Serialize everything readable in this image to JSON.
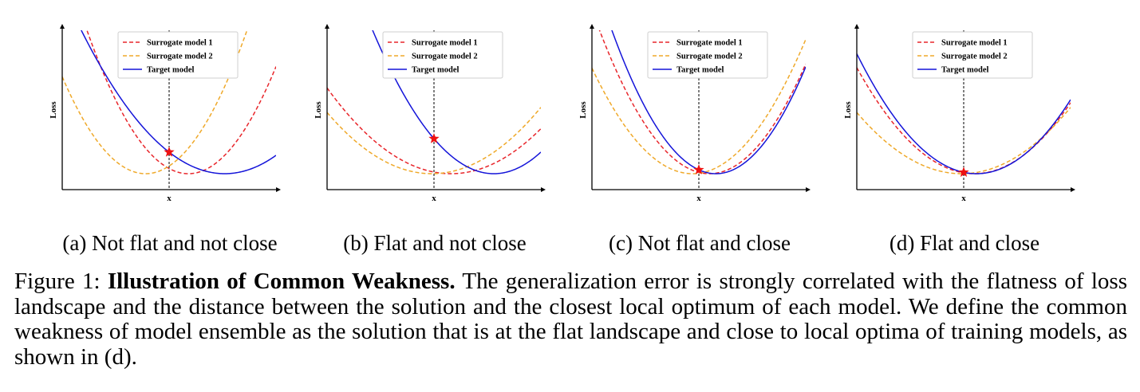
{
  "legend": {
    "surrogate1": "Surrogate model 1",
    "surrogate2": "Surrogate model 2",
    "target": "Target model"
  },
  "axes": {
    "xlabel": "x",
    "ylabel": "Loss"
  },
  "colors": {
    "surrogate1": "#e8262b",
    "surrogate2": "#efa92a",
    "target": "#1414d9",
    "star": "#ee1111"
  },
  "subcaptions": [
    "(a) Not flat and not close",
    "(b) Flat and not close",
    "(c) Not flat and close",
    "(d) Flat and close"
  ],
  "caption": {
    "prefix": "Figure 1: ",
    "title": "Illustration of Common Weakness.",
    "body": " The generalization error is strongly correlated with the flatness of loss landscape and the distance between the solution and the closest local optimum of each model. We define the common weakness of model ensemble as the solution that is at the flat landscape and close to local optima of training models, as shown in (d)."
  },
  "chart_data": [
    {
      "type": "line",
      "subcaption": "(a) Not flat and not close",
      "xlabel": "x",
      "ylabel": "Loss",
      "xlim": [
        0,
        10
      ],
      "ylim": [
        0,
        10
      ],
      "legend": "top-center",
      "solution_x": 5,
      "series": [
        {
          "name": "Surrogate model 1",
          "style": "dashed",
          "vertex": [
            5.9,
            1.0
          ],
          "curvature": 0.4
        },
        {
          "name": "Surrogate model 2",
          "style": "dashed",
          "vertex": [
            3.9,
            1.0
          ],
          "curvature": 0.4
        },
        {
          "name": "Target model",
          "style": "solid",
          "vertex": [
            7.6,
            1.0
          ],
          "curvature": 0.2
        }
      ]
    },
    {
      "type": "line",
      "subcaption": "(b) Flat and not close",
      "xlabel": "x",
      "ylabel": "Loss",
      "xlim": [
        0,
        10
      ],
      "ylim": [
        0,
        10
      ],
      "legend": "top-center",
      "solution_x": 5,
      "series": [
        {
          "name": "Surrogate model 1",
          "style": "dashed",
          "vertex": [
            5.8,
            1.0
          ],
          "curvature": 0.16
        },
        {
          "name": "Surrogate model 2",
          "style": "dashed",
          "vertex": [
            4.9,
            1.0
          ],
          "curvature": 0.16
        },
        {
          "name": "Target model",
          "style": "solid",
          "vertex": [
            7.8,
            1.0
          ],
          "curvature": 0.28
        }
      ]
    },
    {
      "type": "line",
      "subcaption": "(c) Not flat and close",
      "xlabel": "x",
      "ylabel": "Loss",
      "xlim": [
        0,
        10
      ],
      "ylim": [
        0,
        10
      ],
      "legend": "top-center",
      "solution_x": 5,
      "series": [
        {
          "name": "Surrogate model 1",
          "style": "dashed",
          "vertex": [
            5.5,
            1.0
          ],
          "curvature": 0.34
        },
        {
          "name": "Surrogate model 2",
          "style": "dashed",
          "vertex": [
            4.7,
            1.0
          ],
          "curvature": 0.3
        },
        {
          "name": "Target model",
          "style": "solid",
          "vertex": [
            5.8,
            1.0
          ],
          "curvature": 0.38
        }
      ]
    },
    {
      "type": "line",
      "subcaption": "(d) Flat and close",
      "xlabel": "x",
      "ylabel": "Loss",
      "xlim": [
        0,
        10
      ],
      "ylim": [
        0,
        10
      ],
      "legend": "top-center",
      "solution_x": 5,
      "series": [
        {
          "name": "Surrogate model 1",
          "style": "dashed",
          "vertex": [
            5.5,
            1.0
          ],
          "curvature": 0.22
        },
        {
          "name": "Surrogate model 2",
          "style": "dashed",
          "vertex": [
            4.9,
            1.0
          ],
          "curvature": 0.16
        },
        {
          "name": "Target model",
          "style": "solid",
          "vertex": [
            5.6,
            1.0
          ],
          "curvature": 0.24
        }
      ]
    }
  ]
}
